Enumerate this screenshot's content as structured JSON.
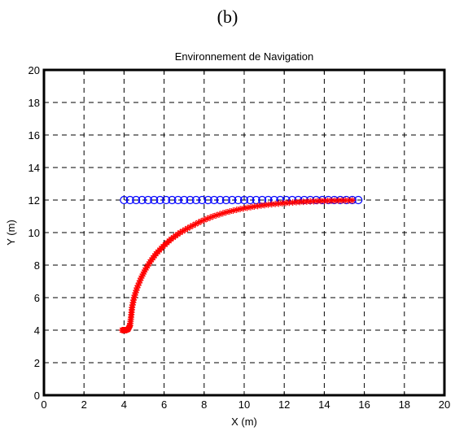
{
  "figure": {
    "caption": "(b)"
  },
  "chart_data": {
    "type": "scatter",
    "title": "Environnement de Navigation",
    "xlabel": "X (m)",
    "ylabel": "Y (m)",
    "xlim": [
      0,
      20
    ],
    "ylim": [
      0,
      20
    ],
    "xticks": [
      0,
      2,
      4,
      6,
      8,
      10,
      12,
      14,
      16,
      18,
      20
    ],
    "yticks": [
      0,
      2,
      4,
      6,
      8,
      10,
      12,
      14,
      16,
      18,
      20
    ],
    "grid": true,
    "series": [
      {
        "marker": "circle",
        "color": "#0000ff",
        "points": [
          [
            4.0,
            12.0
          ],
          [
            4.3,
            12.0
          ],
          [
            4.6,
            12.0
          ],
          [
            4.9,
            12.0
          ],
          [
            5.2,
            12.0
          ],
          [
            5.5,
            12.0
          ],
          [
            5.8,
            12.0
          ],
          [
            6.1,
            12.0
          ],
          [
            6.4,
            12.0
          ],
          [
            6.7,
            12.0
          ],
          [
            7.0,
            12.0
          ],
          [
            7.3,
            12.0
          ],
          [
            7.6,
            12.0
          ],
          [
            7.9,
            12.0
          ],
          [
            8.2,
            12.0
          ],
          [
            8.5,
            12.0
          ],
          [
            8.8,
            12.0
          ],
          [
            9.1,
            12.0
          ],
          [
            9.4,
            12.0
          ],
          [
            9.7,
            12.0
          ],
          [
            10.0,
            12.0
          ],
          [
            10.3,
            12.0
          ],
          [
            10.6,
            12.0
          ],
          [
            10.9,
            12.0
          ],
          [
            11.2,
            12.0
          ],
          [
            11.5,
            12.0
          ],
          [
            11.8,
            12.0
          ],
          [
            12.1,
            12.0
          ],
          [
            12.4,
            12.0
          ],
          [
            12.7,
            12.0
          ],
          [
            13.0,
            12.0
          ],
          [
            13.3,
            12.0
          ],
          [
            13.6,
            12.0
          ],
          [
            13.9,
            12.0
          ],
          [
            14.2,
            12.0
          ],
          [
            14.5,
            12.0
          ],
          [
            14.8,
            12.0
          ],
          [
            15.1,
            12.0
          ],
          [
            15.4,
            12.0
          ],
          [
            15.7,
            12.0
          ]
        ]
      },
      {
        "marker": "star",
        "color": "#ff0000",
        "points": [
          [
            3.9,
            4.0
          ],
          [
            4.0,
            4.0
          ],
          [
            4.1,
            4.0
          ],
          [
            4.2,
            4.05
          ],
          [
            4.3,
            4.3
          ],
          [
            4.35,
            4.8
          ],
          [
            4.4,
            5.4
          ],
          [
            4.5,
            6.0
          ],
          [
            4.65,
            6.6
          ],
          [
            4.85,
            7.2
          ],
          [
            5.05,
            7.7
          ],
          [
            5.3,
            8.2
          ],
          [
            5.6,
            8.7
          ],
          [
            5.95,
            9.15
          ],
          [
            6.35,
            9.6
          ],
          [
            6.8,
            10.0
          ],
          [
            7.3,
            10.35
          ],
          [
            7.85,
            10.7
          ],
          [
            8.45,
            11.0
          ],
          [
            9.1,
            11.25
          ],
          [
            9.8,
            11.45
          ],
          [
            10.5,
            11.6
          ],
          [
            11.2,
            11.72
          ],
          [
            11.9,
            11.8
          ],
          [
            12.6,
            11.87
          ],
          [
            13.3,
            11.92
          ],
          [
            14.0,
            11.95
          ],
          [
            14.7,
            11.97
          ],
          [
            15.4,
            11.98
          ]
        ]
      }
    ]
  }
}
